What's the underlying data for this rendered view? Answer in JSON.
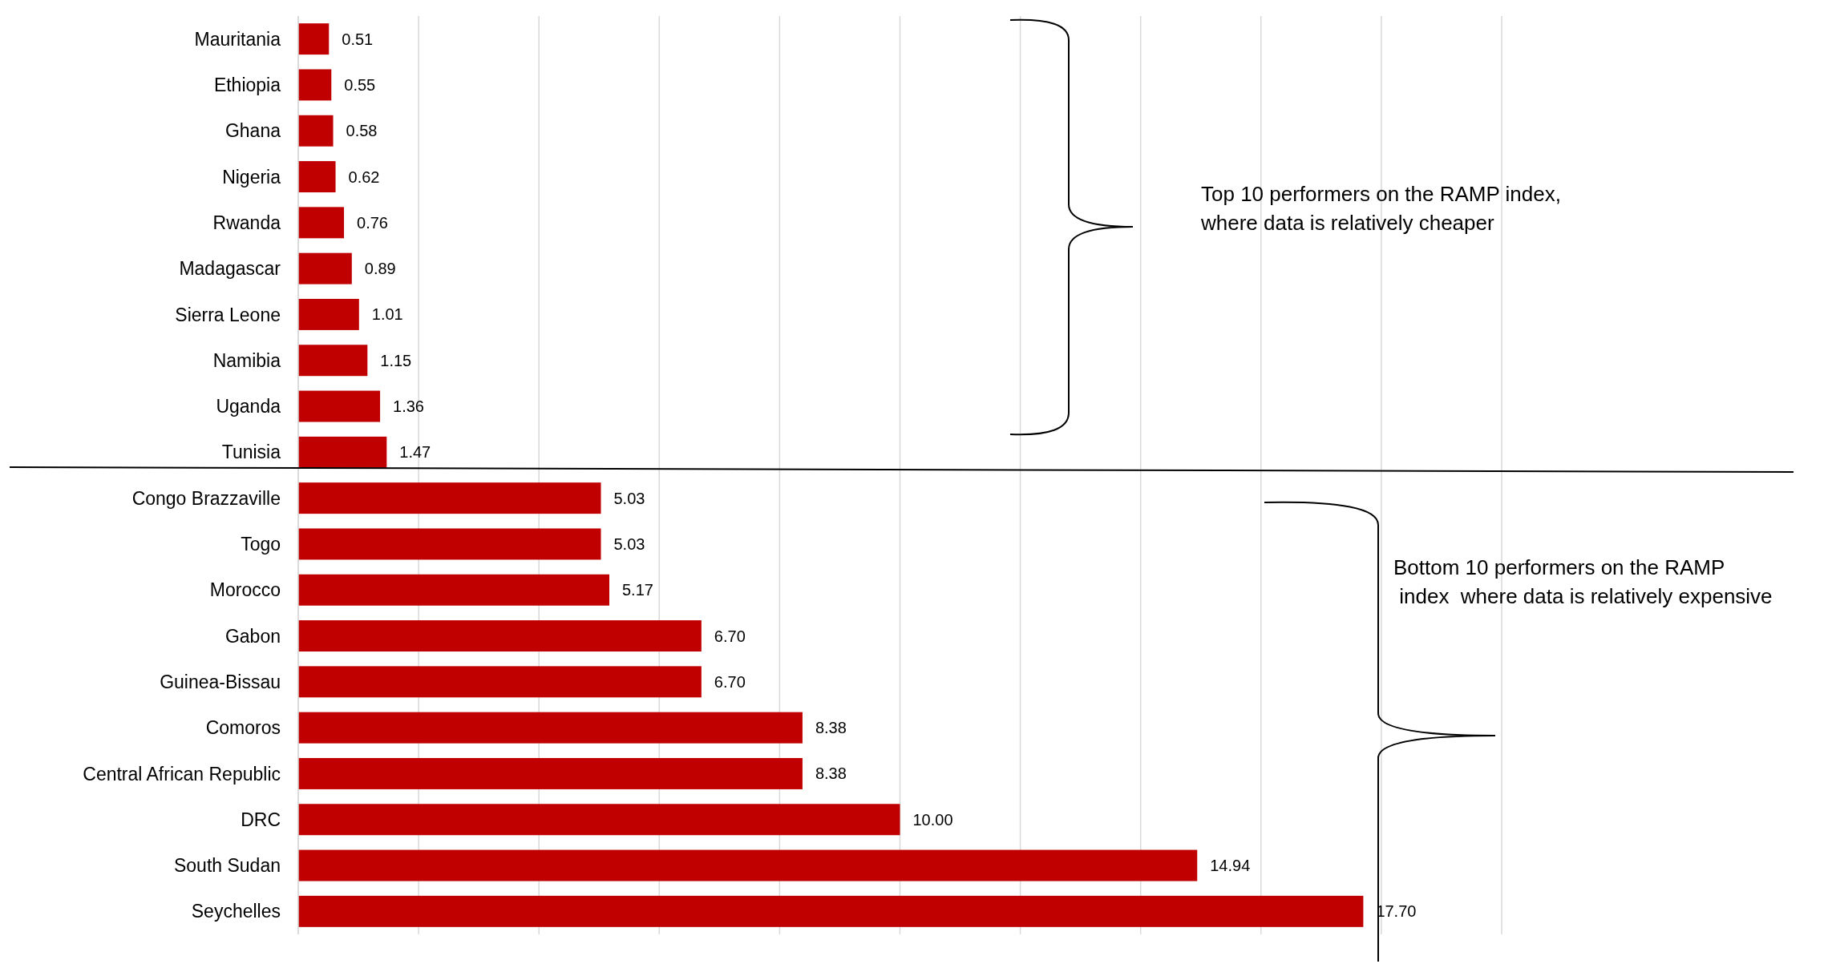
{
  "chart_data": {
    "type": "bar",
    "orientation": "horizontal",
    "categories": [
      "Mauritania",
      "Ethiopia",
      "Ghana",
      "Nigeria",
      "Rwanda",
      "Madagascar",
      "Sierra Leone",
      "Namibia",
      "Uganda",
      "Tunisia",
      "Congo Brazzaville",
      "Togo",
      "Morocco",
      "Gabon",
      "Guinea-Bissau",
      "Comoros",
      "Central African Republic",
      "DRC",
      "South Sudan",
      "Seychelles"
    ],
    "values": [
      0.51,
      0.55,
      0.58,
      0.62,
      0.76,
      0.89,
      1.01,
      1.15,
      1.36,
      1.47,
      5.03,
      5.03,
      5.17,
      6.7,
      6.7,
      8.38,
      8.38,
      10.0,
      14.94,
      17.7
    ],
    "value_labels": [
      "0.51",
      "0.55",
      "0.58",
      "0.62",
      "0.76",
      "0.89",
      "1.01",
      "1.15",
      "1.36",
      "1.47",
      "5.03",
      "5.03",
      "5.17",
      "6.70",
      "6.70",
      "8.38",
      "8.38",
      "10.00",
      "14.94",
      "17.70"
    ],
    "color": "#c00000",
    "xlim": [
      0,
      20
    ],
    "xticks": [
      {
        "value": 0,
        "label": null
      },
      {
        "value": 2,
        "label": null
      },
      {
        "value": 4,
        "label": null
      },
      {
        "value": 6,
        "label": null
      },
      {
        "value": 8,
        "label": null
      },
      {
        "value": 10,
        "label": null
      },
      {
        "value": 12,
        "label": null
      },
      {
        "value": 14,
        "label": null
      },
      {
        "value": 16,
        "label": null
      },
      {
        "value": 18,
        "label": null
      },
      {
        "value": 20,
        "label": null
      }
    ],
    "grid": "x",
    "tick_labels": "y",
    "annotations": [
      "Top 10 performers on the RAMP index,\nwhere data is relatively cheaper",
      "Bottom 10 performers on the RAMP\n index  where data is relatively expensive"
    ]
  }
}
